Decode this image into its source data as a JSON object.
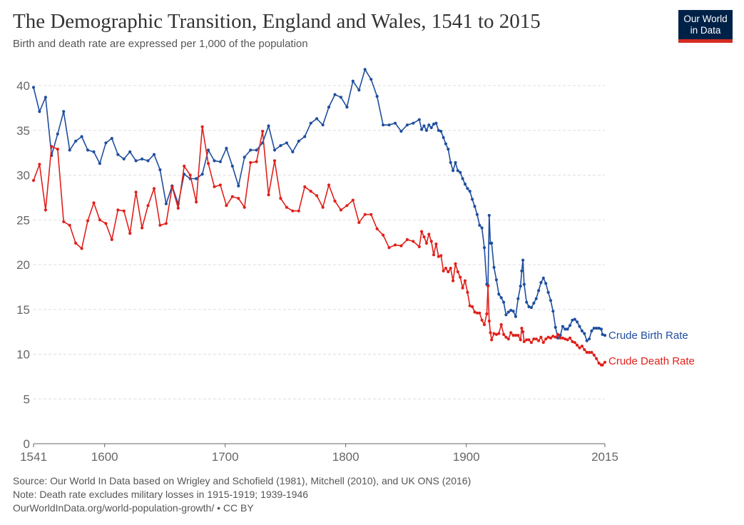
{
  "header": {
    "title": "The Demographic Transition, England and Wales, 1541 to 2015",
    "subtitle": "Birth and death rate are expressed per 1,000 of the population"
  },
  "logo": {
    "line1": "Our World",
    "line2": "in Data"
  },
  "footer": {
    "source": "Source: Our World In Data based on Wrigley and Schofield (1981), Mitchell (2010), and UK ONS (2016)",
    "note": "Note: Death rate excludes military losses in 1915-1919; 1939-1946",
    "url": "OurWorldInData.org/world-population-growth/ • CC BY"
  },
  "colors": {
    "birth": "#1f4e9e",
    "death": "#e0201b",
    "grid": "#dddddd",
    "axis": "#666666"
  },
  "chart_data": {
    "type": "line",
    "title": "The Demographic Transition, England and Wales, 1541 to 2015",
    "subtitle": "Birth and death rate are expressed per 1,000 of the population",
    "xlim": [
      1541,
      2015
    ],
    "ylim": [
      0,
      40
    ],
    "x_ticks": [
      1541,
      1600,
      1700,
      1800,
      1900,
      2015
    ],
    "y_ticks": [
      0,
      5,
      10,
      15,
      20,
      25,
      30,
      35,
      40
    ],
    "grid": "horizontal dashed",
    "legend": "inline labels at right end of series",
    "series": [
      {
        "name": "Crude Birth Rate",
        "color": "#1f4e9e",
        "x": [
          1541,
          1546,
          1551,
          1556,
          1561,
          1566,
          1571,
          1576,
          1581,
          1586,
          1591,
          1596,
          1601,
          1606,
          1611,
          1616,
          1621,
          1626,
          1631,
          1636,
          1641,
          1646,
          1651,
          1656,
          1661,
          1666,
          1671,
          1676,
          1681,
          1686,
          1691,
          1696,
          1701,
          1706,
          1711,
          1716,
          1721,
          1726,
          1731,
          1736,
          1741,
          1746,
          1751,
          1756,
          1761,
          1766,
          1771,
          1776,
          1781,
          1786,
          1791,
          1796,
          1801,
          1806,
          1811,
          1816,
          1821,
          1826,
          1831,
          1836,
          1841,
          1846,
          1851,
          1856,
          1861,
          1863,
          1865,
          1867,
          1869,
          1871,
          1873,
          1875,
          1877,
          1879,
          1881,
          1883,
          1885,
          1887,
          1889,
          1891,
          1893,
          1895,
          1897,
          1899,
          1901,
          1903,
          1905,
          1907,
          1909,
          1911,
          1913,
          1915,
          1917,
          1918,
          1919,
          1920,
          1921,
          1923,
          1925,
          1927,
          1929,
          1931,
          1933,
          1935,
          1937,
          1939,
          1941,
          1943,
          1945,
          1946,
          1947,
          1948,
          1950,
          1952,
          1954,
          1956,
          1958,
          1960,
          1962,
          1964,
          1966,
          1968,
          1970,
          1972,
          1974,
          1976,
          1978,
          1980,
          1982,
          1984,
          1986,
          1988,
          1990,
          1992,
          1994,
          1996,
          1998,
          2000,
          2002,
          2004,
          2006,
          2008,
          2010,
          2012,
          2013,
          2015
        ],
        "y": [
          39.8,
          37.1,
          38.7,
          32.2,
          34.6,
          37.1,
          32.8,
          33.8,
          34.3,
          32.8,
          32.6,
          31.3,
          33.6,
          34.1,
          32.3,
          31.8,
          32.6,
          31.6,
          31.8,
          31.6,
          32.3,
          30.6,
          26.8,
          28.8,
          26.8,
          30.1,
          29.6,
          29.6,
          30.1,
          32.8,
          31.6,
          31.5,
          33.0,
          31.0,
          28.8,
          32.0,
          32.8,
          32.8,
          33.6,
          35.5,
          32.8,
          33.3,
          33.6,
          32.6,
          33.8,
          34.3,
          35.8,
          36.3,
          35.6,
          37.6,
          39.0,
          38.7,
          37.6,
          40.5,
          39.5,
          41.8,
          40.7,
          38.8,
          35.6,
          35.6,
          35.8,
          34.9,
          35.6,
          35.8,
          36.2,
          35.1,
          35.5,
          35.0,
          35.6,
          35.3,
          35.7,
          35.8,
          35.0,
          34.9,
          34.2,
          33.5,
          32.9,
          31.4,
          30.5,
          31.4,
          30.5,
          30.3,
          29.6,
          29.0,
          28.5,
          28.2,
          27.3,
          26.5,
          25.6,
          24.4,
          24.1,
          21.9,
          17.8,
          17.7,
          25.5,
          22.4,
          22.4,
          19.7,
          18.3,
          16.7,
          16.3,
          15.8,
          14.4,
          14.7,
          14.9,
          14.8,
          14.2,
          16.2,
          17.6,
          19.3,
          20.5,
          17.8,
          15.8,
          15.3,
          15.2,
          15.7,
          16.2,
          17.1,
          18.0,
          18.5,
          17.9,
          16.9,
          16.0,
          14.8,
          13.0,
          11.8,
          12.1,
          13.1,
          12.8,
          12.8,
          13.2,
          13.8,
          13.9,
          13.6,
          13.1,
          12.6,
          12.3,
          11.5,
          11.7,
          12.6,
          12.9,
          12.9,
          12.9,
          12.8,
          12.2,
          12.1
        ]
      },
      {
        "name": "Crude Death Rate",
        "color": "#e0201b",
        "x": [
          1541,
          1546,
          1551,
          1556,
          1561,
          1566,
          1571,
          1576,
          1581,
          1586,
          1591,
          1596,
          1601,
          1606,
          1611,
          1616,
          1621,
          1626,
          1631,
          1636,
          1641,
          1646,
          1651,
          1656,
          1661,
          1666,
          1671,
          1676,
          1681,
          1686,
          1691,
          1696,
          1701,
          1706,
          1711,
          1716,
          1721,
          1726,
          1731,
          1736,
          1741,
          1746,
          1751,
          1756,
          1761,
          1766,
          1771,
          1776,
          1781,
          1786,
          1791,
          1796,
          1801,
          1806,
          1811,
          1816,
          1821,
          1826,
          1831,
          1836,
          1841,
          1846,
          1851,
          1856,
          1861,
          1863,
          1865,
          1867,
          1869,
          1871,
          1873,
          1875,
          1877,
          1879,
          1881,
          1883,
          1885,
          1887,
          1889,
          1891,
          1893,
          1895,
          1897,
          1899,
          1901,
          1903,
          1905,
          1907,
          1909,
          1911,
          1913,
          1915,
          1917,
          1918,
          1919,
          1920,
          1921,
          1923,
          1925,
          1927,
          1929,
          1931,
          1933,
          1935,
          1937,
          1939,
          1941,
          1943,
          1945,
          1946,
          1947,
          1948,
          1950,
          1952,
          1954,
          1956,
          1958,
          1960,
          1962,
          1964,
          1966,
          1968,
          1970,
          1972,
          1974,
          1976,
          1978,
          1980,
          1982,
          1984,
          1986,
          1988,
          1990,
          1992,
          1994,
          1996,
          1998,
          2000,
          2002,
          2004,
          2006,
          2008,
          2010,
          2012,
          2013,
          2015
        ],
        "y": [
          29.4,
          31.2,
          26.1,
          33.2,
          32.9,
          24.8,
          24.4,
          22.4,
          21.8,
          24.9,
          26.9,
          25.0,
          24.6,
          22.8,
          26.1,
          26.0,
          23.5,
          28.1,
          24.1,
          26.6,
          28.5,
          24.4,
          24.6,
          28.7,
          26.3,
          31.0,
          30.0,
          27.0,
          35.4,
          31.3,
          28.7,
          28.9,
          26.6,
          27.6,
          27.4,
          26.4,
          31.4,
          31.5,
          34.9,
          27.8,
          31.6,
          27.4,
          26.4,
          26.0,
          26.0,
          28.7,
          28.2,
          27.7,
          26.4,
          28.9,
          27.1,
          26.1,
          26.6,
          27.2,
          24.7,
          25.6,
          25.6,
          24.0,
          23.3,
          21.9,
          22.2,
          22.1,
          22.8,
          22.6,
          22.0,
          23.7,
          23.1,
          22.4,
          23.4,
          22.6,
          21.1,
          22.3,
          20.9,
          21.0,
          19.3,
          19.6,
          19.2,
          19.6,
          18.2,
          20.1,
          19.2,
          18.6,
          17.4,
          18.2,
          16.9,
          15.4,
          15.3,
          14.7,
          14.6,
          14.6,
          13.8,
          13.3,
          14.5,
          17.6,
          13.7,
          12.4,
          11.6,
          12.3,
          12.2,
          12.3,
          13.3,
          12.2,
          11.9,
          11.7,
          12.4,
          12.1,
          12.1,
          12.1,
          11.6,
          12.9,
          12.5,
          11.4,
          11.6,
          11.6,
          11.3,
          11.7,
          11.7,
          11.5,
          11.9,
          11.3,
          11.7,
          11.9,
          11.8,
          12.0,
          11.9,
          12.2,
          11.8,
          11.8,
          11.7,
          11.6,
          11.8,
          11.4,
          11.3,
          11.0,
          10.7,
          10.9,
          10.5,
          10.2,
          10.2,
          10.2,
          9.9,
          9.5,
          9.0,
          8.8,
          8.8,
          9.1
        ]
      }
    ]
  }
}
